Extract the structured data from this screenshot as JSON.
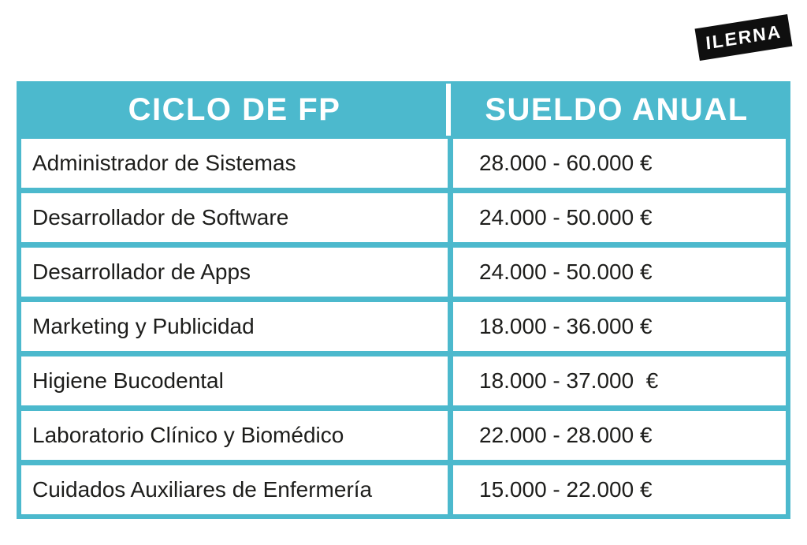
{
  "colors": {
    "accent": "#4cb9cd",
    "logo_bg": "#0f0f0f",
    "header_text": "#ffffff",
    "body_text": "#1d1d1b",
    "page_bg": "#ffffff"
  },
  "logo": {
    "text": "ILERNA"
  },
  "chart_data": {
    "type": "table",
    "columns": [
      "CICLO DE FP",
      "SUELDO ANUAL"
    ],
    "rows": [
      [
        "Administrador de Sistemas",
        "28.000 - 60.000 €"
      ],
      [
        "Desarrollador de Software",
        "24.000 - 50.000 €"
      ],
      [
        "Desarrollador de Apps",
        "24.000 - 50.000 €"
      ],
      [
        "Marketing y Publicidad",
        "18.000 - 36.000 €"
      ],
      [
        "Higiene Bucodental",
        "18.000 - 37.000  €"
      ],
      [
        "Laboratorio Clínico y Biomédico",
        "22.000 - 28.000 €"
      ],
      [
        "Cuidados Auxiliares de Enfermería",
        "15.000 - 22.000 €"
      ]
    ],
    "layout": {
      "header_background": "#4cb9cd",
      "row_background": "#ffffff",
      "grid": "on"
    }
  }
}
